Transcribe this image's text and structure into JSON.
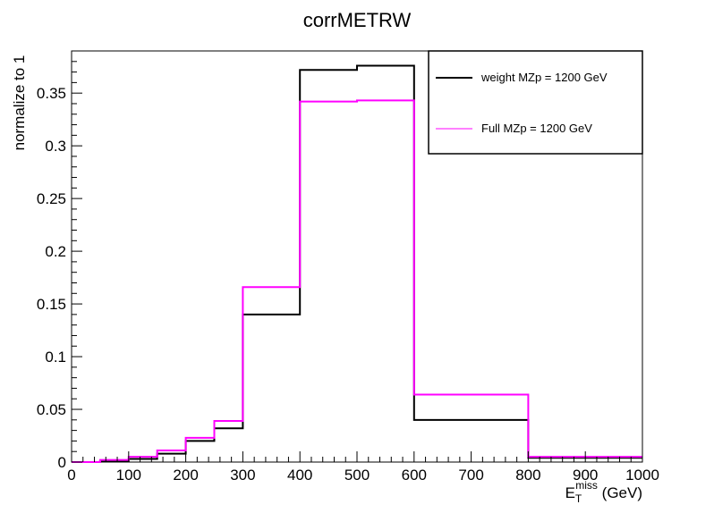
{
  "chart_data": {
    "type": "histogram",
    "title": "corrMETRW",
    "ylabel": "normalize to 1",
    "xlabel": {
      "main": "E",
      "sub": "T",
      "sup": "miss",
      "unit": " (GeV)"
    },
    "xlim": [
      0,
      1000
    ],
    "ylim": [
      0,
      0.39
    ],
    "x_ticks": [
      0,
      100,
      200,
      300,
      400,
      500,
      600,
      700,
      800,
      900,
      1000
    ],
    "x_tick_labels": [
      "0",
      "100",
      "200",
      "300",
      "400",
      "500",
      "600",
      "700",
      "800",
      "900",
      "1000"
    ],
    "y_ticks": [
      0,
      0.05,
      0.1,
      0.15,
      0.2,
      0.25,
      0.3,
      0.35
    ],
    "y_tick_labels": [
      "0",
      "0.05",
      "0.1",
      "0.15",
      "0.2",
      "0.25",
      "0.3",
      "0.35"
    ],
    "bin_edges": [
      0,
      50,
      100,
      150,
      200,
      250,
      300,
      400,
      500,
      600,
      800,
      1000
    ],
    "legend_position": "top-right",
    "grid": false,
    "series": [
      {
        "name": "weight MZp = 1200 GeV",
        "color": "#000000",
        "values": [
          0.0,
          0.001,
          0.003,
          0.008,
          0.02,
          0.032,
          0.14,
          0.372,
          0.376,
          0.04,
          0.004
        ]
      },
      {
        "name": "Full MZp = 1200 GeV",
        "color": "#ff00ff",
        "values": [
          0.0,
          0.002,
          0.005,
          0.011,
          0.023,
          0.039,
          0.166,
          0.342,
          0.343,
          0.064,
          0.005
        ]
      }
    ]
  }
}
